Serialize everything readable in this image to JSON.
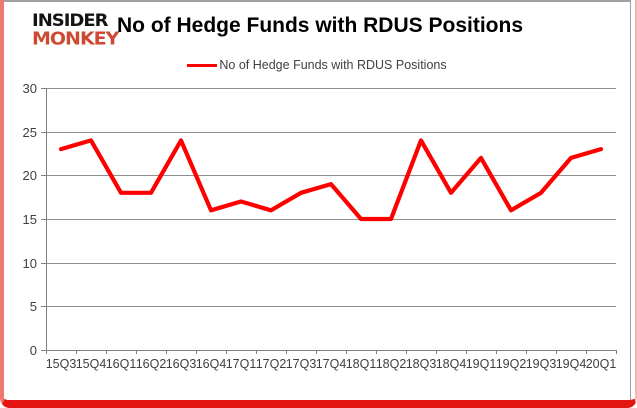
{
  "brand": {
    "line1": "INSIDER",
    "line2": "MONKEY"
  },
  "header": {
    "title": "No of Hedge Funds with RDUS Positions"
  },
  "legend": {
    "label": "No of Hedge Funds with RDUS Positions"
  },
  "colors": {
    "series_line": "#ff0000",
    "brand_red": "#cd4a32",
    "frame_red": "#e41510",
    "gridline": "#8e8e8e",
    "axis": "#808080",
    "tick_label": "#3f3f3f"
  },
  "chart_data": {
    "type": "line",
    "title": "No of Hedge Funds with RDUS Positions",
    "categories": [
      "15Q3",
      "15Q4",
      "16Q1",
      "16Q2",
      "16Q3",
      "16Q4",
      "17Q1",
      "17Q2",
      "17Q3",
      "17Q4",
      "18Q1",
      "18Q2",
      "18Q3",
      "18Q4",
      "19Q1",
      "19Q2",
      "19Q3",
      "19Q4",
      "20Q1"
    ],
    "series": [
      {
        "name": "No of Hedge Funds with RDUS Positions",
        "color": "#ff0000",
        "values": [
          23,
          24,
          18,
          18,
          24,
          16,
          17,
          16,
          18,
          19,
          15,
          15,
          24,
          18,
          22,
          16,
          18,
          22,
          23
        ]
      }
    ],
    "xlabel": "",
    "ylabel": "",
    "ylim": [
      0,
      30
    ],
    "yticks": [
      0,
      5,
      10,
      15,
      20,
      25,
      30
    ],
    "grid": true,
    "legend_position": "top-center"
  }
}
